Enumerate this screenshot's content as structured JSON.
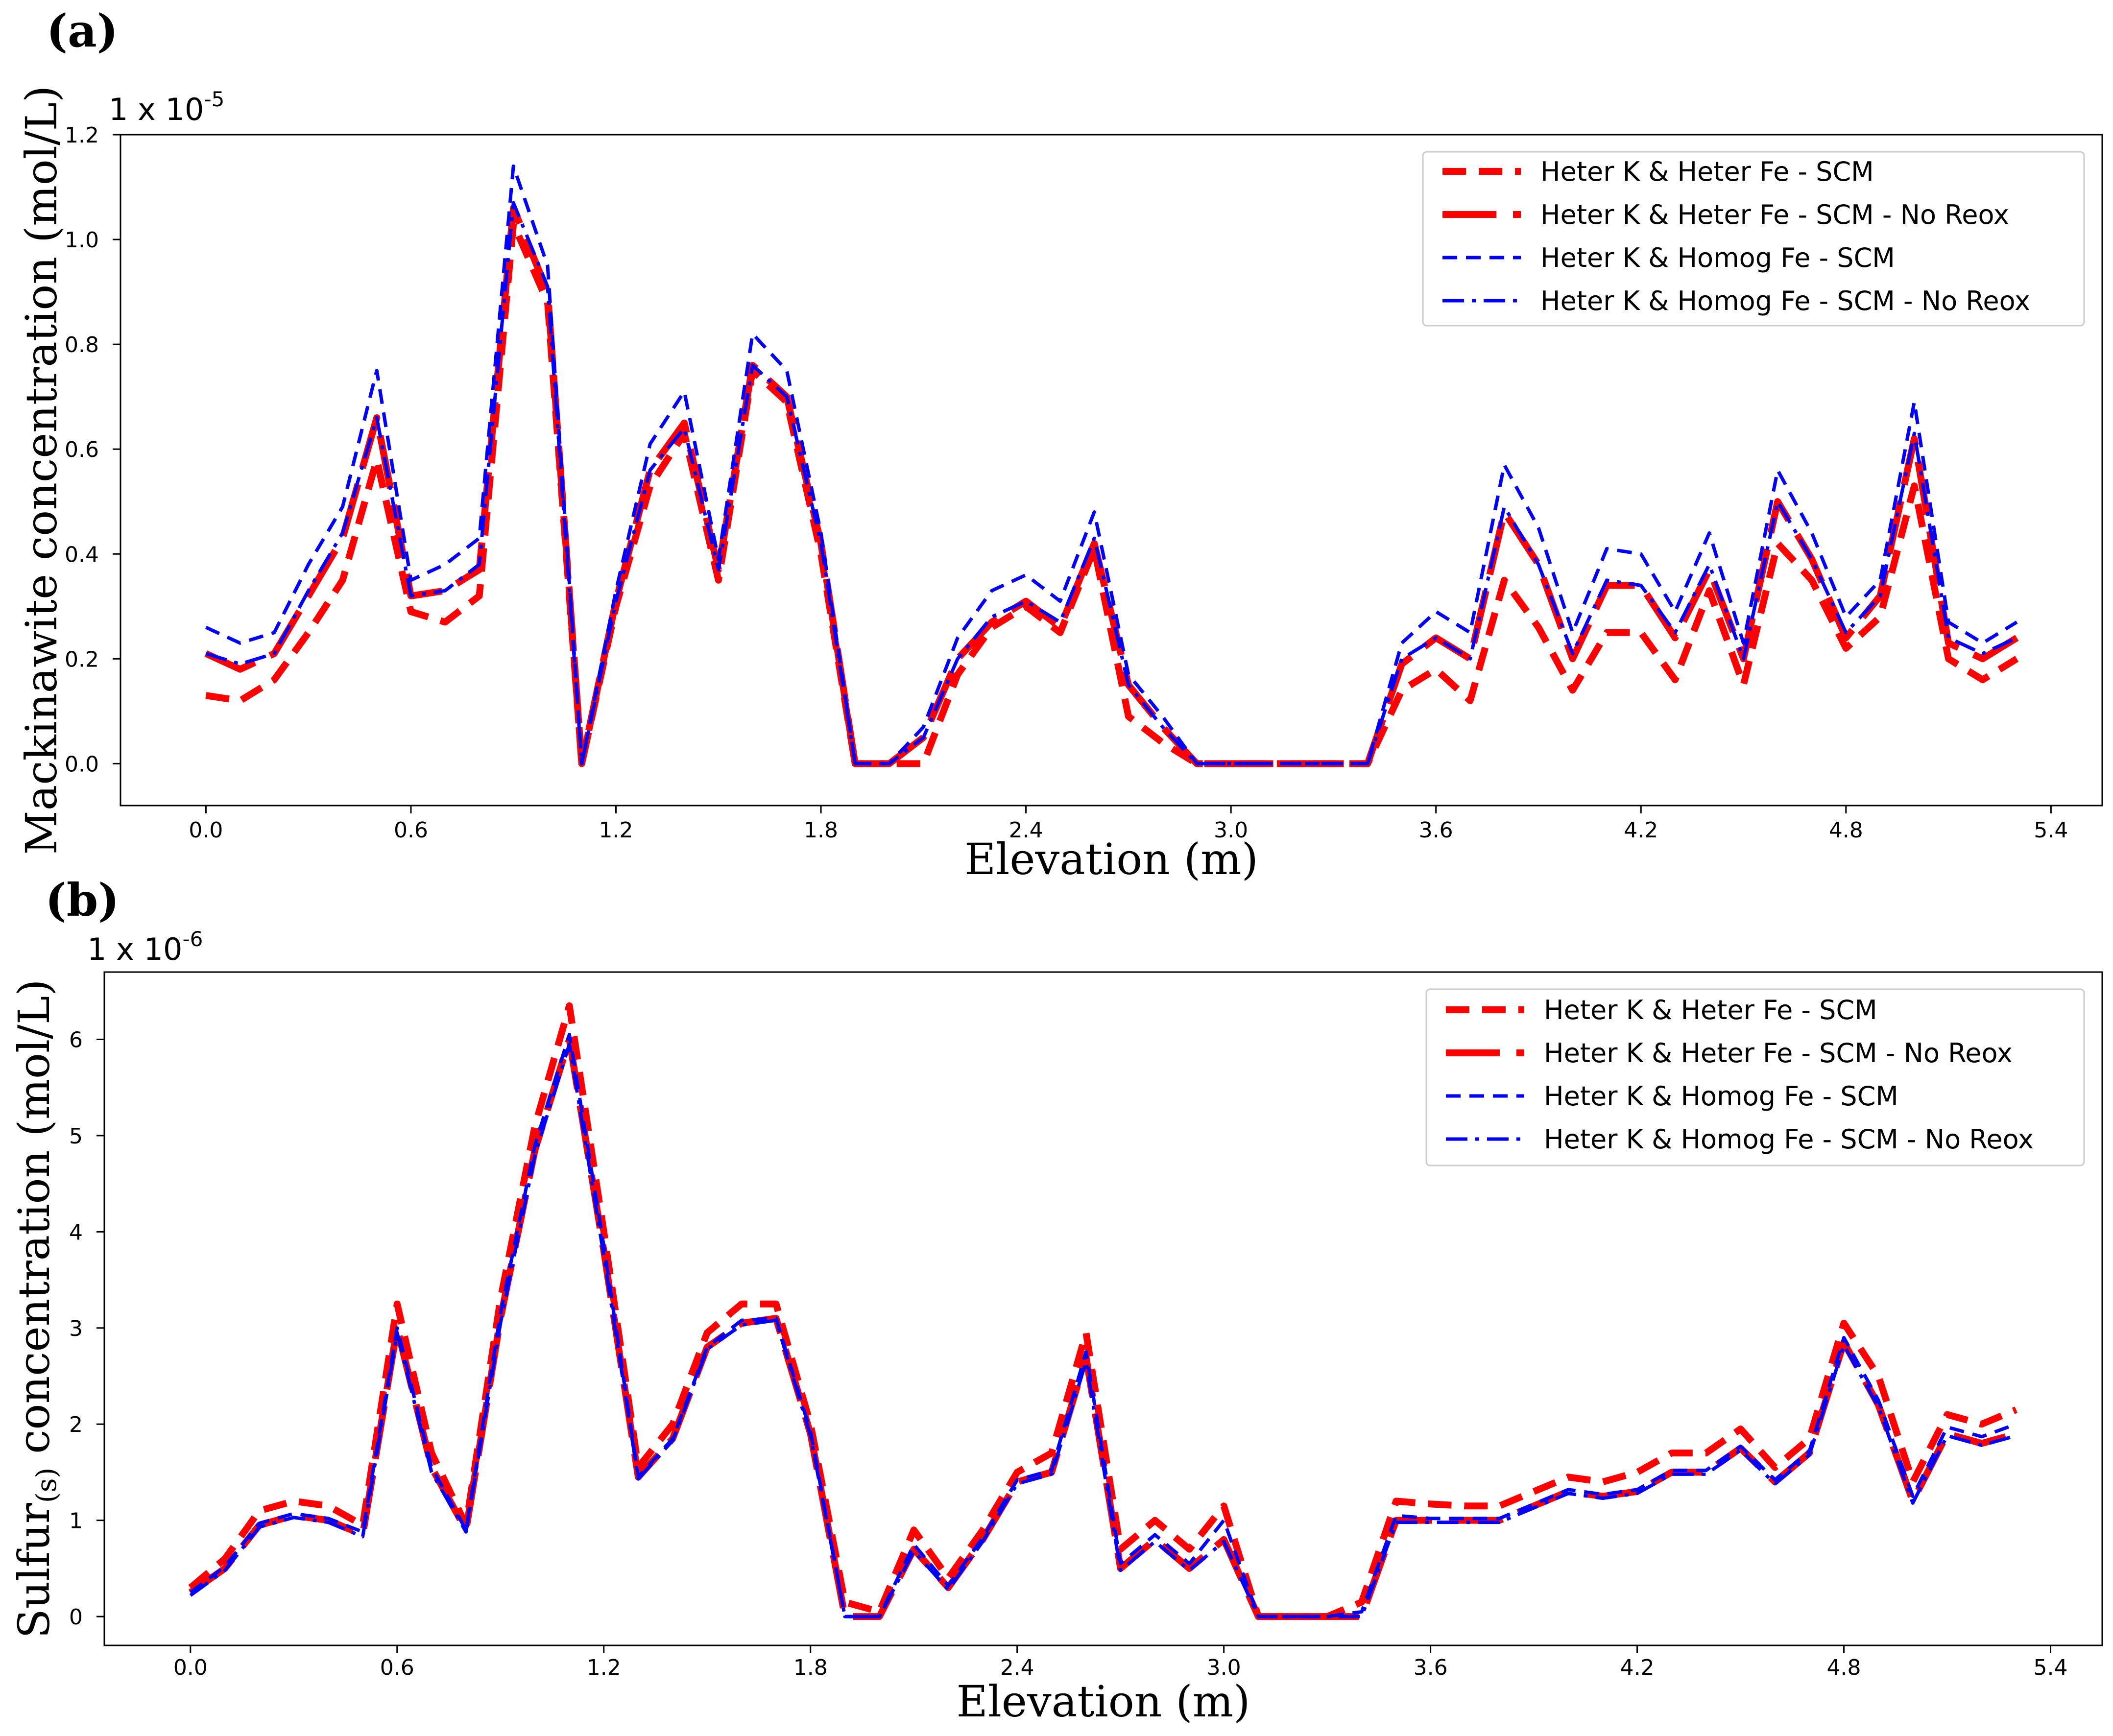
{
  "figure": {
    "colors": {
      "red": "#ff0000",
      "blue": "#0000ff",
      "axis": "#000000"
    },
    "line_styles": {
      "Heter K & Heter Fe - SCM": "dashed-thick",
      "Heter K & Heter Fe - SCM - No Reox": "long-dashed-thick",
      "Heter K & Homog Fe - SCM": "dashed-thin",
      "Heter K & Homog Fe - SCM - No Reox": "dashdot-thin"
    }
  },
  "chart_data": [
    {
      "panel_label": "(a)",
      "type": "line",
      "title": "",
      "xlabel": "Elevation (m)",
      "ylabel": "Mackinawite  concentration (mol/L)",
      "multiplier": {
        "base": "1 x 10",
        "exponent": "-5"
      },
      "xlim": [
        -0.25,
        5.55
      ],
      "ylim": [
        -0.08,
        1.2
      ],
      "xticks": [
        "0.0",
        "0.6",
        "1.2",
        "1.8",
        "2.4",
        "3.0",
        "3.6",
        "4.2",
        "4.8",
        "5.4"
      ],
      "yticks": [
        "0.0",
        "0.2",
        "0.4",
        "0.6",
        "0.8",
        "1.0",
        "1.2"
      ],
      "legend_position": "top-right",
      "x": [
        0.0,
        0.1,
        0.2,
        0.3,
        0.4,
        0.5,
        0.6,
        0.7,
        0.8,
        0.9,
        1.0,
        1.1,
        1.2,
        1.3,
        1.4,
        1.5,
        1.6,
        1.7,
        1.8,
        1.9,
        2.0,
        2.1,
        2.2,
        2.3,
        2.4,
        2.5,
        2.6,
        2.7,
        2.8,
        2.9,
        3.0,
        3.1,
        3.2,
        3.3,
        3.4,
        3.5,
        3.6,
        3.7,
        3.8,
        3.9,
        4.0,
        4.1,
        4.2,
        4.3,
        4.4,
        4.5,
        4.6,
        4.7,
        4.8,
        4.9,
        5.0,
        5.1,
        5.2,
        5.3
      ],
      "series": [
        {
          "name": "Heter K & Heter Fe - SCM",
          "color": "#ff0000",
          "values": [
            0.13,
            0.12,
            0.16,
            0.25,
            0.35,
            0.58,
            0.29,
            0.27,
            0.32,
            1.03,
            0.88,
            0.0,
            0.3,
            0.53,
            0.63,
            0.35,
            0.75,
            0.69,
            0.4,
            0.0,
            0.0,
            0.0,
            0.17,
            0.26,
            0.3,
            0.25,
            0.41,
            0.09,
            0.04,
            0.0,
            0.0,
            0.0,
            0.0,
            0.0,
            0.0,
            0.14,
            0.18,
            0.12,
            0.35,
            0.26,
            0.14,
            0.25,
            0.25,
            0.16,
            0.33,
            0.15,
            0.42,
            0.35,
            0.22,
            0.28,
            0.53,
            0.2,
            0.16,
            0.2
          ]
        },
        {
          "name": "Heter K & Heter Fe - SCM - No Reox",
          "color": "#ff0000",
          "values": [
            0.21,
            0.18,
            0.21,
            0.32,
            0.43,
            0.66,
            0.32,
            0.33,
            0.37,
            1.06,
            0.9,
            0.0,
            0.31,
            0.56,
            0.65,
            0.37,
            0.76,
            0.7,
            0.42,
            0.0,
            0.0,
            0.05,
            0.2,
            0.27,
            0.31,
            0.26,
            0.42,
            0.15,
            0.07,
            0.0,
            0.0,
            0.0,
            0.0,
            0.0,
            0.0,
            0.19,
            0.24,
            0.2,
            0.48,
            0.38,
            0.2,
            0.34,
            0.34,
            0.24,
            0.37,
            0.2,
            0.5,
            0.39,
            0.24,
            0.32,
            0.62,
            0.23,
            0.2,
            0.24
          ]
        },
        {
          "name": "Heter K & Homog Fe - SCM",
          "color": "#0000ff",
          "values": [
            0.26,
            0.23,
            0.25,
            0.38,
            0.49,
            0.75,
            0.35,
            0.38,
            0.43,
            1.14,
            0.95,
            0.0,
            0.33,
            0.61,
            0.71,
            0.39,
            0.82,
            0.75,
            0.44,
            0.0,
            0.0,
            0.07,
            0.24,
            0.33,
            0.36,
            0.31,
            0.48,
            0.17,
            0.09,
            0.0,
            0.0,
            0.0,
            0.0,
            0.0,
            0.0,
            0.23,
            0.29,
            0.25,
            0.57,
            0.45,
            0.25,
            0.41,
            0.4,
            0.29,
            0.44,
            0.23,
            0.56,
            0.44,
            0.28,
            0.35,
            0.69,
            0.27,
            0.23,
            0.27
          ]
        },
        {
          "name": "Heter K & Homog Fe - SCM - No Reox",
          "color": "#0000ff",
          "values": [
            0.21,
            0.19,
            0.21,
            0.33,
            0.44,
            0.66,
            0.32,
            0.33,
            0.38,
            1.07,
            0.91,
            0.0,
            0.31,
            0.56,
            0.64,
            0.37,
            0.76,
            0.7,
            0.42,
            0.0,
            0.0,
            0.05,
            0.2,
            0.28,
            0.31,
            0.27,
            0.43,
            0.15,
            0.07,
            0.0,
            0.0,
            0.0,
            0.0,
            0.0,
            0.0,
            0.2,
            0.24,
            0.2,
            0.49,
            0.38,
            0.21,
            0.35,
            0.34,
            0.25,
            0.38,
            0.2,
            0.5,
            0.39,
            0.25,
            0.32,
            0.63,
            0.24,
            0.21,
            0.24
          ]
        }
      ]
    },
    {
      "panel_label": "(b)",
      "type": "line",
      "title": "",
      "xlabel": "Elevation (m)",
      "ylabel": "Sulfur",
      "ylabel_subscript": "(s)",
      "ylabel_suffix": " concentration (mol/L)",
      "multiplier": {
        "base": "1 x 10",
        "exponent": "-6"
      },
      "xlim": [
        -0.25,
        5.55
      ],
      "ylim": [
        -0.3,
        6.7
      ],
      "xticks": [
        "0.0",
        "0.6",
        "1.2",
        "1.8",
        "2.4",
        "3.0",
        "3.6",
        "4.2",
        "4.8",
        "5.4"
      ],
      "yticks": [
        "0",
        "1",
        "2",
        "3",
        "4",
        "5",
        "6"
      ],
      "legend_position": "top-right",
      "x": [
        0.0,
        0.1,
        0.2,
        0.3,
        0.4,
        0.5,
        0.6,
        0.7,
        0.8,
        0.9,
        1.0,
        1.1,
        1.2,
        1.3,
        1.4,
        1.5,
        1.6,
        1.7,
        1.8,
        1.9,
        2.0,
        2.1,
        2.2,
        2.3,
        2.4,
        2.5,
        2.6,
        2.7,
        2.8,
        2.9,
        3.0,
        3.1,
        3.2,
        3.3,
        3.4,
        3.5,
        3.6,
        3.7,
        3.8,
        3.9,
        4.0,
        4.1,
        4.2,
        4.3,
        4.4,
        4.5,
        4.6,
        4.7,
        4.8,
        4.9,
        5.0,
        5.1,
        5.2,
        5.3
      ],
      "series": [
        {
          "name": "Heter K & Heter Fe - SCM",
          "color": "#ff0000",
          "values": [
            0.3,
            0.6,
            1.1,
            1.2,
            1.15,
            0.95,
            3.25,
            1.7,
            0.95,
            3.3,
            5.1,
            6.35,
            4.0,
            1.55,
            2.0,
            2.95,
            3.25,
            3.25,
            2.0,
            0.15,
            0.05,
            0.9,
            0.4,
            0.9,
            1.5,
            1.7,
            2.95,
            0.7,
            1.0,
            0.7,
            1.15,
            0.0,
            0.0,
            0.0,
            0.15,
            1.2,
            1.17,
            1.15,
            1.15,
            1.3,
            1.45,
            1.4,
            1.5,
            1.7,
            1.7,
            1.95,
            1.55,
            1.85,
            3.05,
            2.5,
            1.4,
            2.1,
            2.0,
            2.15
          ]
        },
        {
          "name": "Heter K & Heter Fe - SCM - No Reox",
          "color": "#ff0000",
          "values": [
            0.25,
            0.5,
            0.95,
            1.05,
            1.0,
            0.85,
            3.0,
            1.55,
            0.9,
            3.1,
            4.85,
            6.0,
            3.8,
            1.45,
            1.85,
            2.8,
            3.05,
            3.1,
            1.9,
            0.0,
            0.0,
            0.7,
            0.3,
            0.8,
            1.4,
            1.5,
            2.7,
            0.5,
            0.8,
            0.5,
            0.8,
            0.0,
            0.0,
            0.0,
            0.0,
            1.0,
            1.0,
            1.0,
            1.0,
            1.15,
            1.3,
            1.25,
            1.3,
            1.5,
            1.5,
            1.75,
            1.4,
            1.7,
            2.85,
            2.2,
            1.2,
            1.9,
            1.8,
            1.9
          ]
        },
        {
          "name": "Heter K & Homog Fe - SCM",
          "color": "#0000ff",
          "values": [
            0.25,
            0.52,
            0.97,
            1.07,
            1.02,
            0.88,
            3.0,
            1.55,
            0.9,
            3.15,
            4.9,
            6.05,
            3.85,
            1.45,
            1.85,
            2.8,
            3.08,
            3.1,
            1.92,
            0.0,
            0.0,
            0.75,
            0.32,
            0.82,
            1.42,
            1.52,
            2.75,
            0.55,
            0.85,
            0.55,
            1.0,
            0.0,
            0.0,
            0.0,
            0.05,
            1.05,
            1.02,
            1.02,
            1.02,
            1.17,
            1.32,
            1.27,
            1.32,
            1.52,
            1.52,
            1.77,
            1.42,
            1.72,
            2.9,
            2.25,
            1.25,
            1.97,
            1.87,
            2.0
          ]
        },
        {
          "name": "Heter K & Homog Fe - SCM - No Reox",
          "color": "#0000ff",
          "values": [
            0.22,
            0.48,
            0.93,
            1.03,
            0.98,
            0.83,
            2.95,
            1.5,
            0.88,
            3.05,
            4.8,
            5.95,
            3.75,
            1.43,
            1.83,
            2.78,
            3.03,
            3.08,
            1.88,
            0.0,
            0.0,
            0.68,
            0.28,
            0.78,
            1.38,
            1.48,
            2.65,
            0.48,
            0.78,
            0.48,
            0.78,
            0.0,
            0.0,
            0.0,
            0.0,
            0.98,
            0.98,
            0.98,
            0.98,
            1.13,
            1.28,
            1.23,
            1.28,
            1.48,
            1.48,
            1.73,
            1.38,
            1.68,
            2.82,
            2.18,
            1.18,
            1.88,
            1.78,
            1.88
          ]
        }
      ]
    }
  ]
}
